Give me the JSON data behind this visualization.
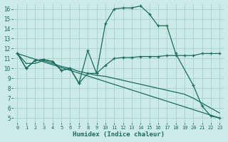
{
  "xlabel": "Humidex (Indice chaleur)",
  "bg_color": "#cceae7",
  "line_color": "#1a6b60",
  "grid_color": "#aad4cf",
  "xlim": [
    -0.5,
    23.5
  ],
  "ylim": [
    4.5,
    16.5
  ],
  "yticks": [
    5,
    6,
    7,
    8,
    9,
    10,
    11,
    12,
    13,
    14,
    15,
    16
  ],
  "xticks": [
    0,
    1,
    2,
    3,
    4,
    5,
    6,
    7,
    8,
    9,
    10,
    11,
    12,
    13,
    14,
    15,
    16,
    17,
    18,
    19,
    20,
    21,
    22,
    23
  ],
  "line1_x": [
    0,
    1,
    2,
    3,
    4,
    5,
    6,
    7,
    8,
    9,
    10,
    11,
    12,
    13,
    14,
    15,
    16,
    17,
    18,
    20,
    21,
    22,
    23
  ],
  "line1_y": [
    11.5,
    10.0,
    10.8,
    10.9,
    10.7,
    9.8,
    10.0,
    8.5,
    11.8,
    9.5,
    14.5,
    16.0,
    16.1,
    16.1,
    16.3,
    15.5,
    14.3,
    14.3,
    11.5,
    8.3,
    6.2,
    5.2,
    5.0
  ],
  "line2_x": [
    0,
    1,
    2,
    3,
    4,
    5,
    6,
    7,
    8,
    9,
    10,
    11,
    12,
    13,
    14,
    15,
    16,
    17,
    18,
    19,
    20,
    21,
    22,
    23
  ],
  "line2_y": [
    11.5,
    10.0,
    10.8,
    10.9,
    10.7,
    9.8,
    10.0,
    8.5,
    9.5,
    9.5,
    10.3,
    11.0,
    11.1,
    11.1,
    11.2,
    11.2,
    11.2,
    11.3,
    11.3,
    11.3,
    11.3,
    11.5,
    11.5,
    11.5
  ],
  "line3_x": [
    0,
    23
  ],
  "line3_y": [
    11.5,
    5.0
  ],
  "line4_x": [
    0,
    1,
    2,
    3,
    4,
    5,
    6,
    7,
    8,
    9,
    10,
    11,
    12,
    13,
    14,
    15,
    16,
    17,
    18,
    19,
    20,
    21,
    22,
    23
  ],
  "line4_y": [
    11.5,
    10.5,
    10.5,
    10.8,
    10.5,
    10.2,
    10.0,
    9.7,
    9.5,
    9.3,
    9.2,
    9.0,
    8.8,
    8.6,
    8.4,
    8.2,
    8.0,
    7.8,
    7.6,
    7.4,
    7.0,
    6.5,
    6.0,
    5.5
  ]
}
